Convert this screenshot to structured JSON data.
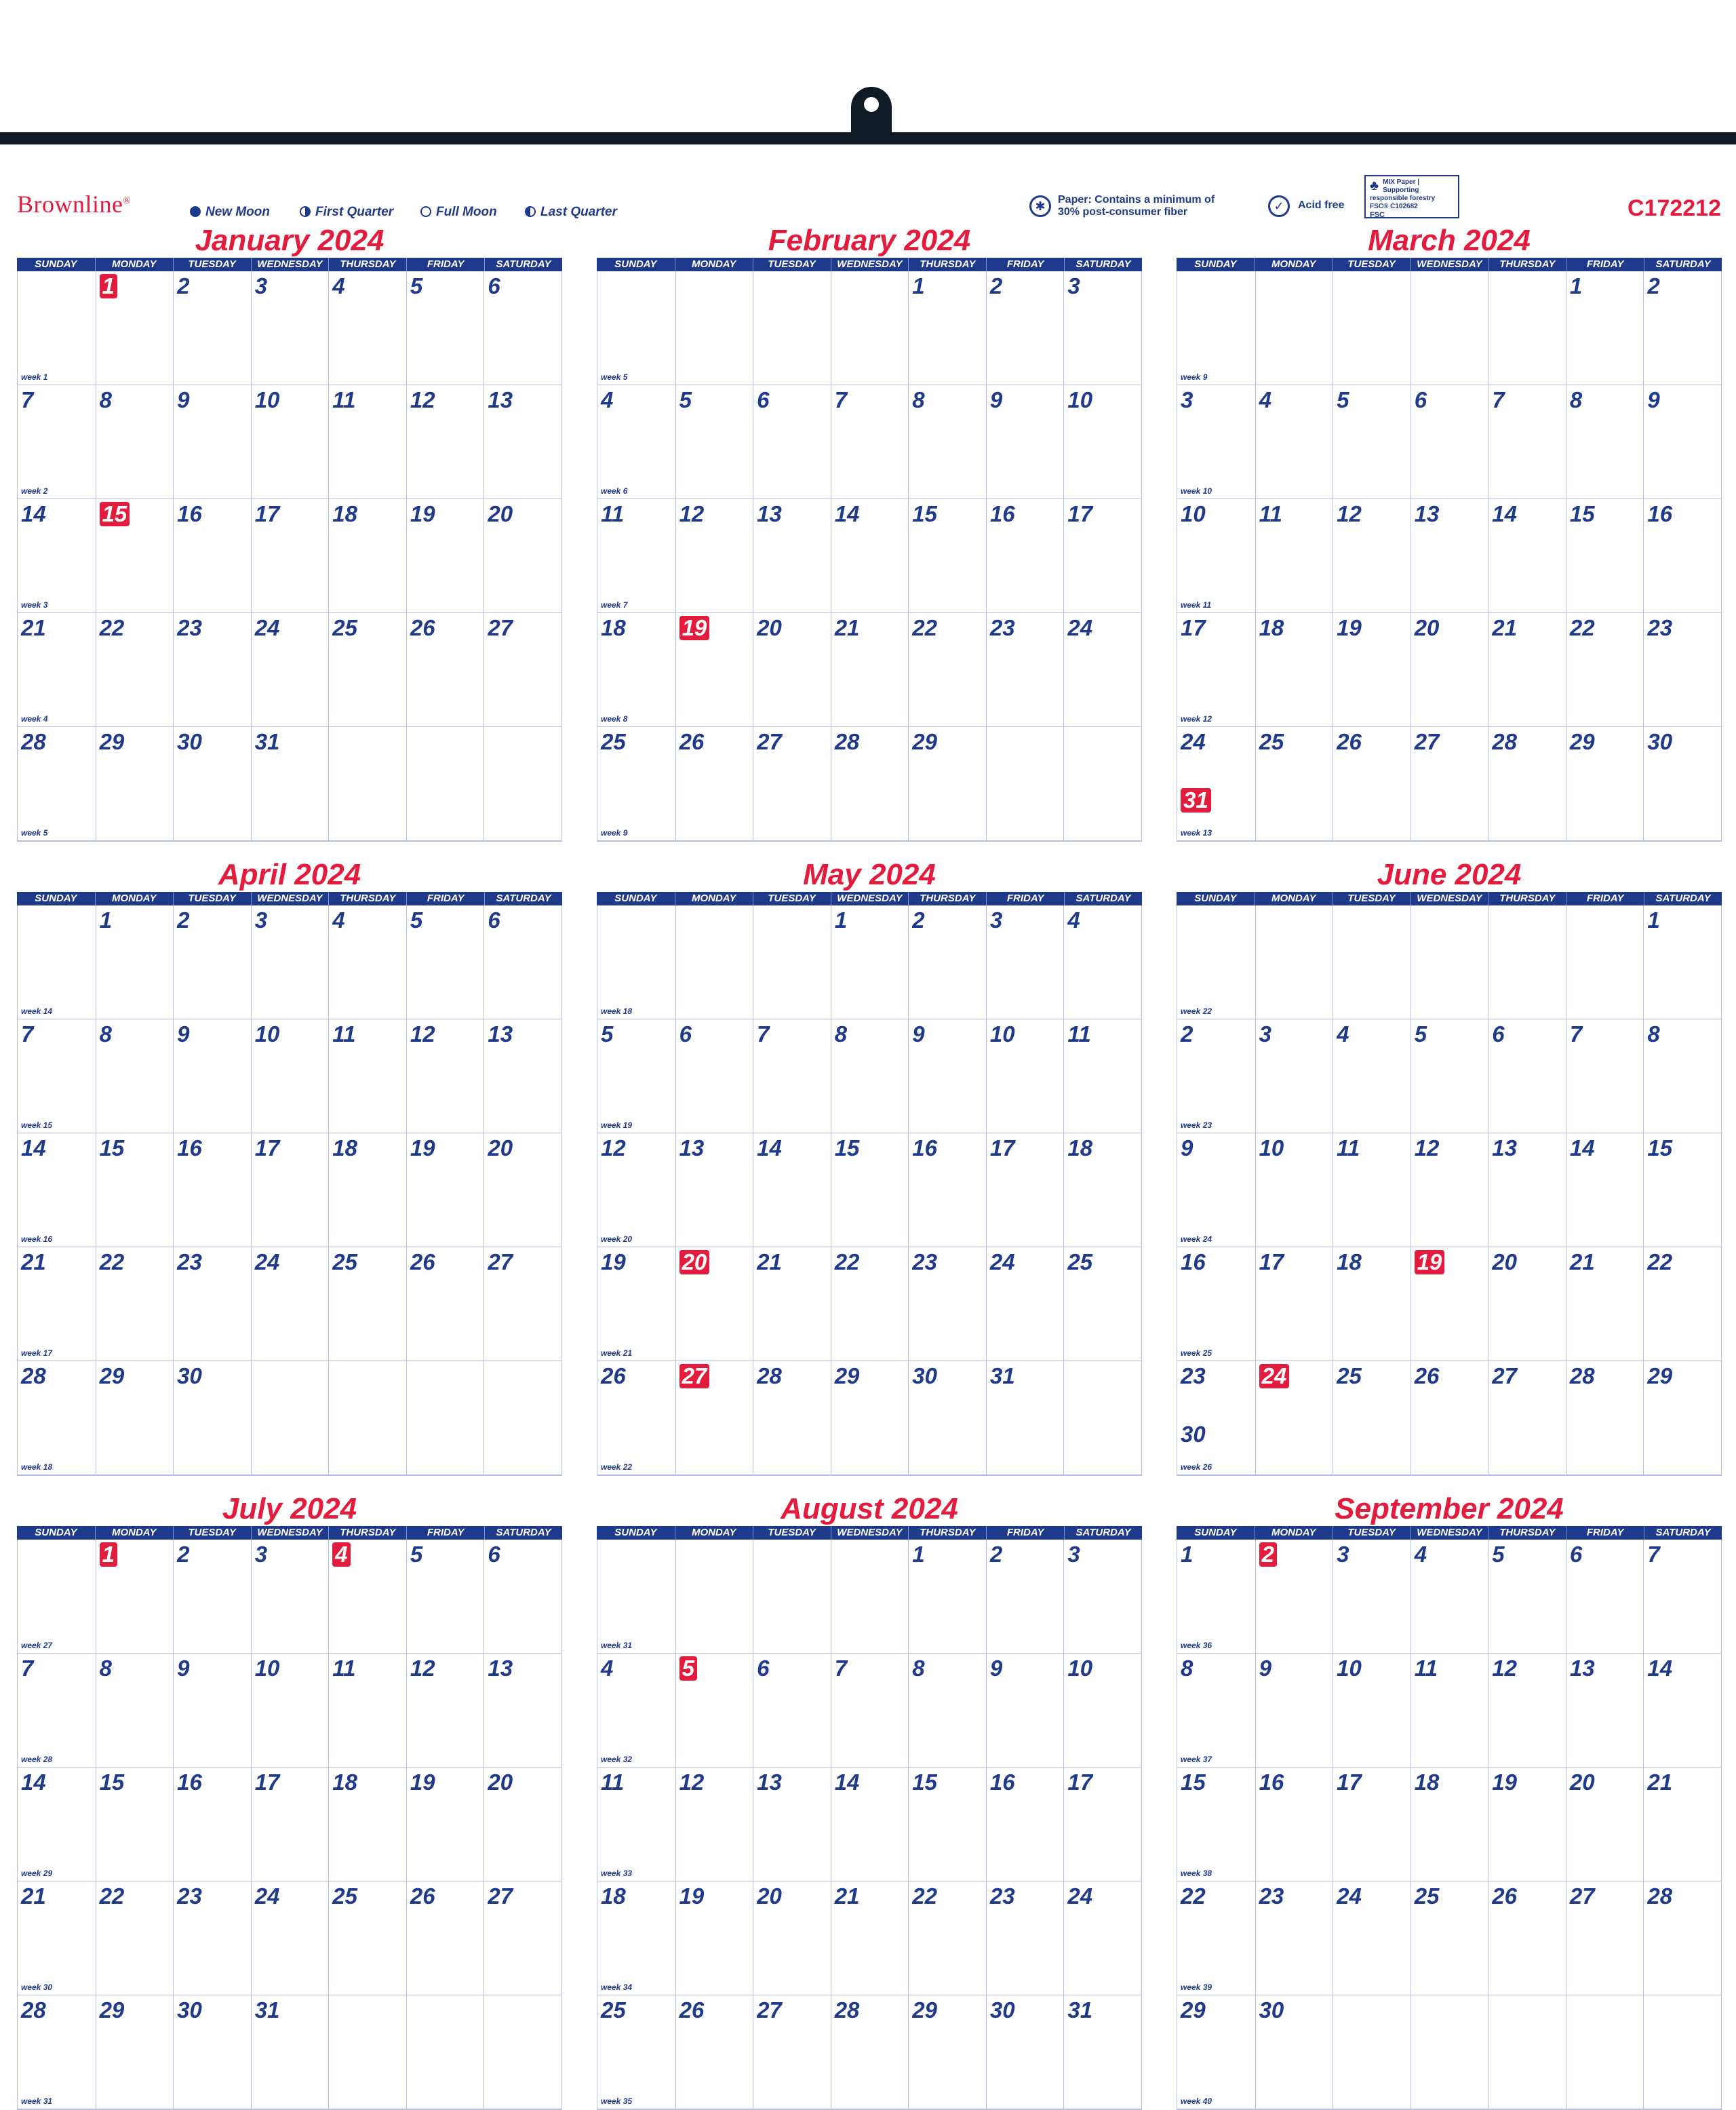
{
  "header": {
    "brand": "Brownline",
    "legend": [
      {
        "label": "New Moon",
        "icon": "new-moon-icon"
      },
      {
        "label": "First Quarter",
        "icon": "first-quarter-icon"
      },
      {
        "label": "Full Moon",
        "icon": "full-moon-icon"
      },
      {
        "label": "Last Quarter",
        "icon": "last-quarter-icon"
      }
    ],
    "paper_line1": "Paper: Contains a minimum of",
    "paper_line2": "30% post-consumer fiber",
    "acid_free": "Acid free",
    "fsc_text": "MIX Paper | Supporting responsible forestry FSC® C102682",
    "fsc_label": "FSC",
    "product_code": "C172212"
  },
  "weekdays": [
    "SUNDAY",
    "MONDAY",
    "TUESDAY",
    "WEDNESDAY",
    "THURSDAY",
    "FRIDAY",
    "SATURDAY"
  ],
  "months": [
    {
      "name": "January 2024",
      "start": 1,
      "days": 31,
      "red": [
        1,
        15
      ],
      "first_week": 1
    },
    {
      "name": "February 2024",
      "start": 4,
      "days": 29,
      "red": [
        19
      ],
      "first_week": 5
    },
    {
      "name": "March 2024",
      "start": 5,
      "days": 31,
      "red": [
        31
      ],
      "first_week": 9
    },
    {
      "name": "April 2024",
      "start": 1,
      "days": 30,
      "red": [],
      "first_week": 14
    },
    {
      "name": "May 2024",
      "start": 3,
      "days": 31,
      "red": [
        20,
        27
      ],
      "first_week": 18
    },
    {
      "name": "June 2024",
      "start": 6,
      "days": 30,
      "red": [
        19,
        24
      ],
      "first_week": 22
    },
    {
      "name": "July 2024",
      "start": 1,
      "days": 31,
      "red": [
        1,
        4
      ],
      "first_week": 27
    },
    {
      "name": "August 2024",
      "start": 4,
      "days": 31,
      "red": [
        5
      ],
      "first_week": 31
    },
    {
      "name": "September 2024",
      "start": 0,
      "days": 30,
      "red": [
        2
      ],
      "first_week": 36
    }
  ]
}
